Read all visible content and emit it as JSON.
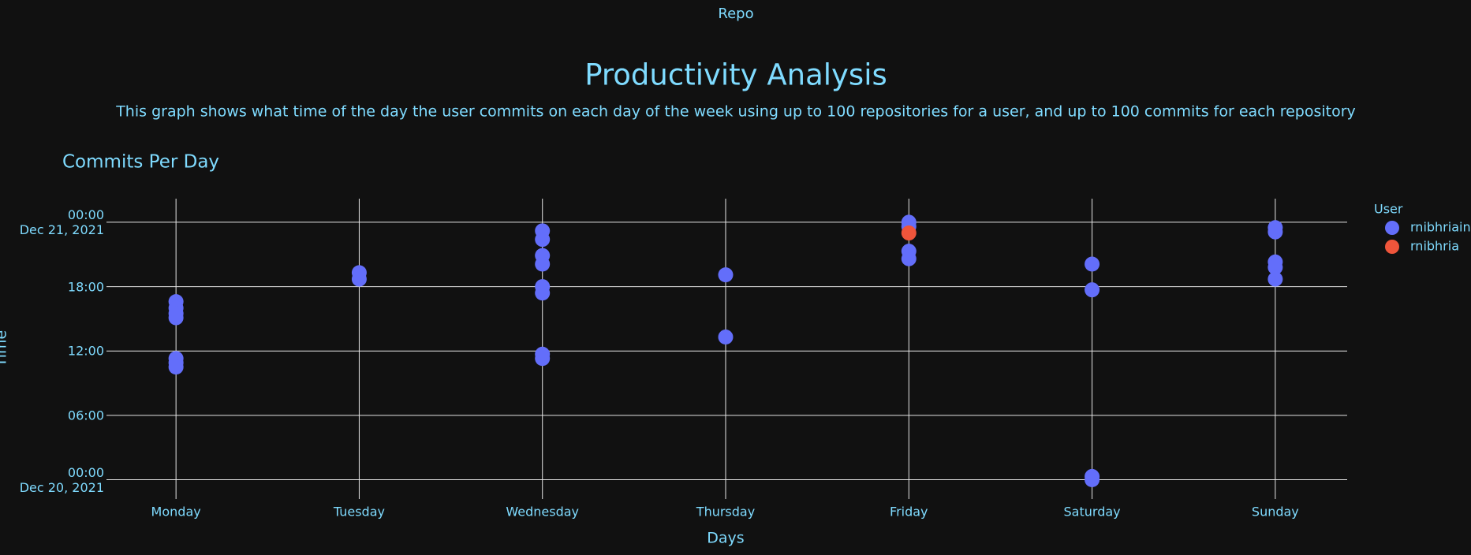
{
  "header": {
    "repo": "Repo",
    "title": "Productivity Analysis",
    "subtitle": "This graph shows what time of the day the user commits on each day of the week using up to 100 repositories for a user, and up to 100 commits for each repository"
  },
  "chart_data": {
    "type": "scatter",
    "title": "Commits Per Day",
    "x_label": "Days",
    "y_label": "Time",
    "legend_title": "User",
    "legend": "right",
    "grid": true,
    "categories": [
      "Monday",
      "Tuesday",
      "Wednesday",
      "Thursday",
      "Friday",
      "Saturday",
      "Sunday"
    ],
    "ylim": [
      -1.8,
      26.2
    ],
    "yticks": [
      {
        "value": 0,
        "label": "00:00\nDec 20, 2021"
      },
      {
        "value": 6,
        "label": "06:00"
      },
      {
        "value": 12,
        "label": "12:00"
      },
      {
        "value": 18,
        "label": "18:00"
      },
      {
        "value": 24,
        "label": "00:00\nDec 21, 2021"
      }
    ],
    "series": [
      {
        "name": "rnibhriain",
        "color": "#636efa",
        "x": [
          "Monday",
          "Monday",
          "Monday",
          "Monday",
          "Monday",
          "Monday",
          "Monday",
          "Tuesday",
          "Tuesday",
          "Wednesday",
          "Wednesday",
          "Wednesday",
          "Wednesday",
          "Wednesday",
          "Wednesday",
          "Wednesday",
          "Wednesday",
          "Thursday",
          "Thursday",
          "Friday",
          "Friday",
          "Friday",
          "Friday",
          "Saturday",
          "Saturday",
          "Saturday",
          "Saturday",
          "Sunday",
          "Sunday",
          "Sunday",
          "Sunday",
          "Sunday"
        ],
        "values": [
          16.6,
          16.0,
          15.5,
          15.1,
          11.3,
          10.9,
          10.5,
          19.3,
          18.7,
          23.2,
          22.4,
          20.9,
          20.1,
          18.0,
          17.4,
          11.7,
          11.3,
          19.1,
          13.3,
          24.0,
          23.6,
          21.3,
          20.6,
          20.1,
          17.7,
          0.3,
          0.0,
          23.5,
          23.1,
          20.3,
          19.8,
          18.7
        ]
      },
      {
        "name": "rnibhria",
        "color": "#ef553b",
        "x": [
          "Friday"
        ],
        "values": [
          23.0
        ]
      }
    ]
  }
}
